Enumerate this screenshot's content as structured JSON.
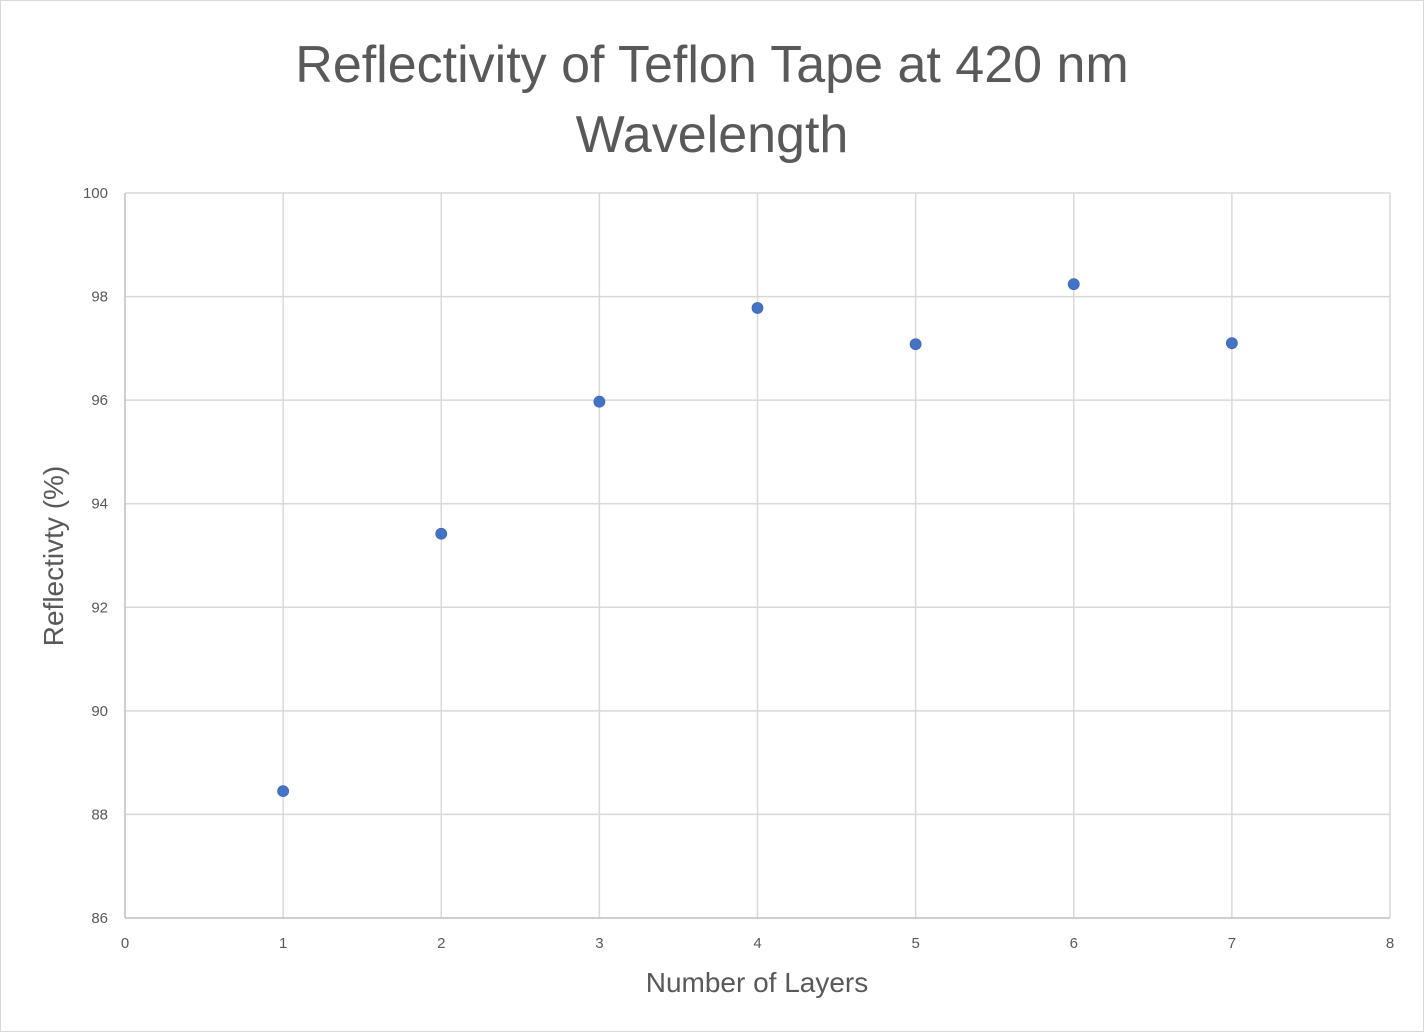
{
  "chart_data": {
    "type": "scatter",
    "title_line1": "Reflectivity of Teflon Tape at 420 nm",
    "title_line2": "Wavelength",
    "xlabel": "Number of Layers",
    "ylabel": "Reflectivty (%)",
    "xlim": [
      0,
      8
    ],
    "ylim": [
      86,
      100
    ],
    "x_ticks": [
      0,
      1,
      2,
      3,
      4,
      5,
      6,
      7,
      8
    ],
    "y_ticks": [
      86,
      88,
      90,
      92,
      94,
      96,
      98,
      100
    ],
    "grid": true,
    "series": [
      {
        "color": "#4472c4",
        "points": [
          {
            "x": 1,
            "y": 88.45
          },
          {
            "x": 2,
            "y": 93.42
          },
          {
            "x": 3,
            "y": 95.97
          },
          {
            "x": 4,
            "y": 97.78
          },
          {
            "x": 5,
            "y": 97.08
          },
          {
            "x": 6,
            "y": 98.24
          },
          {
            "x": 7,
            "y": 97.1
          }
        ]
      }
    ]
  }
}
